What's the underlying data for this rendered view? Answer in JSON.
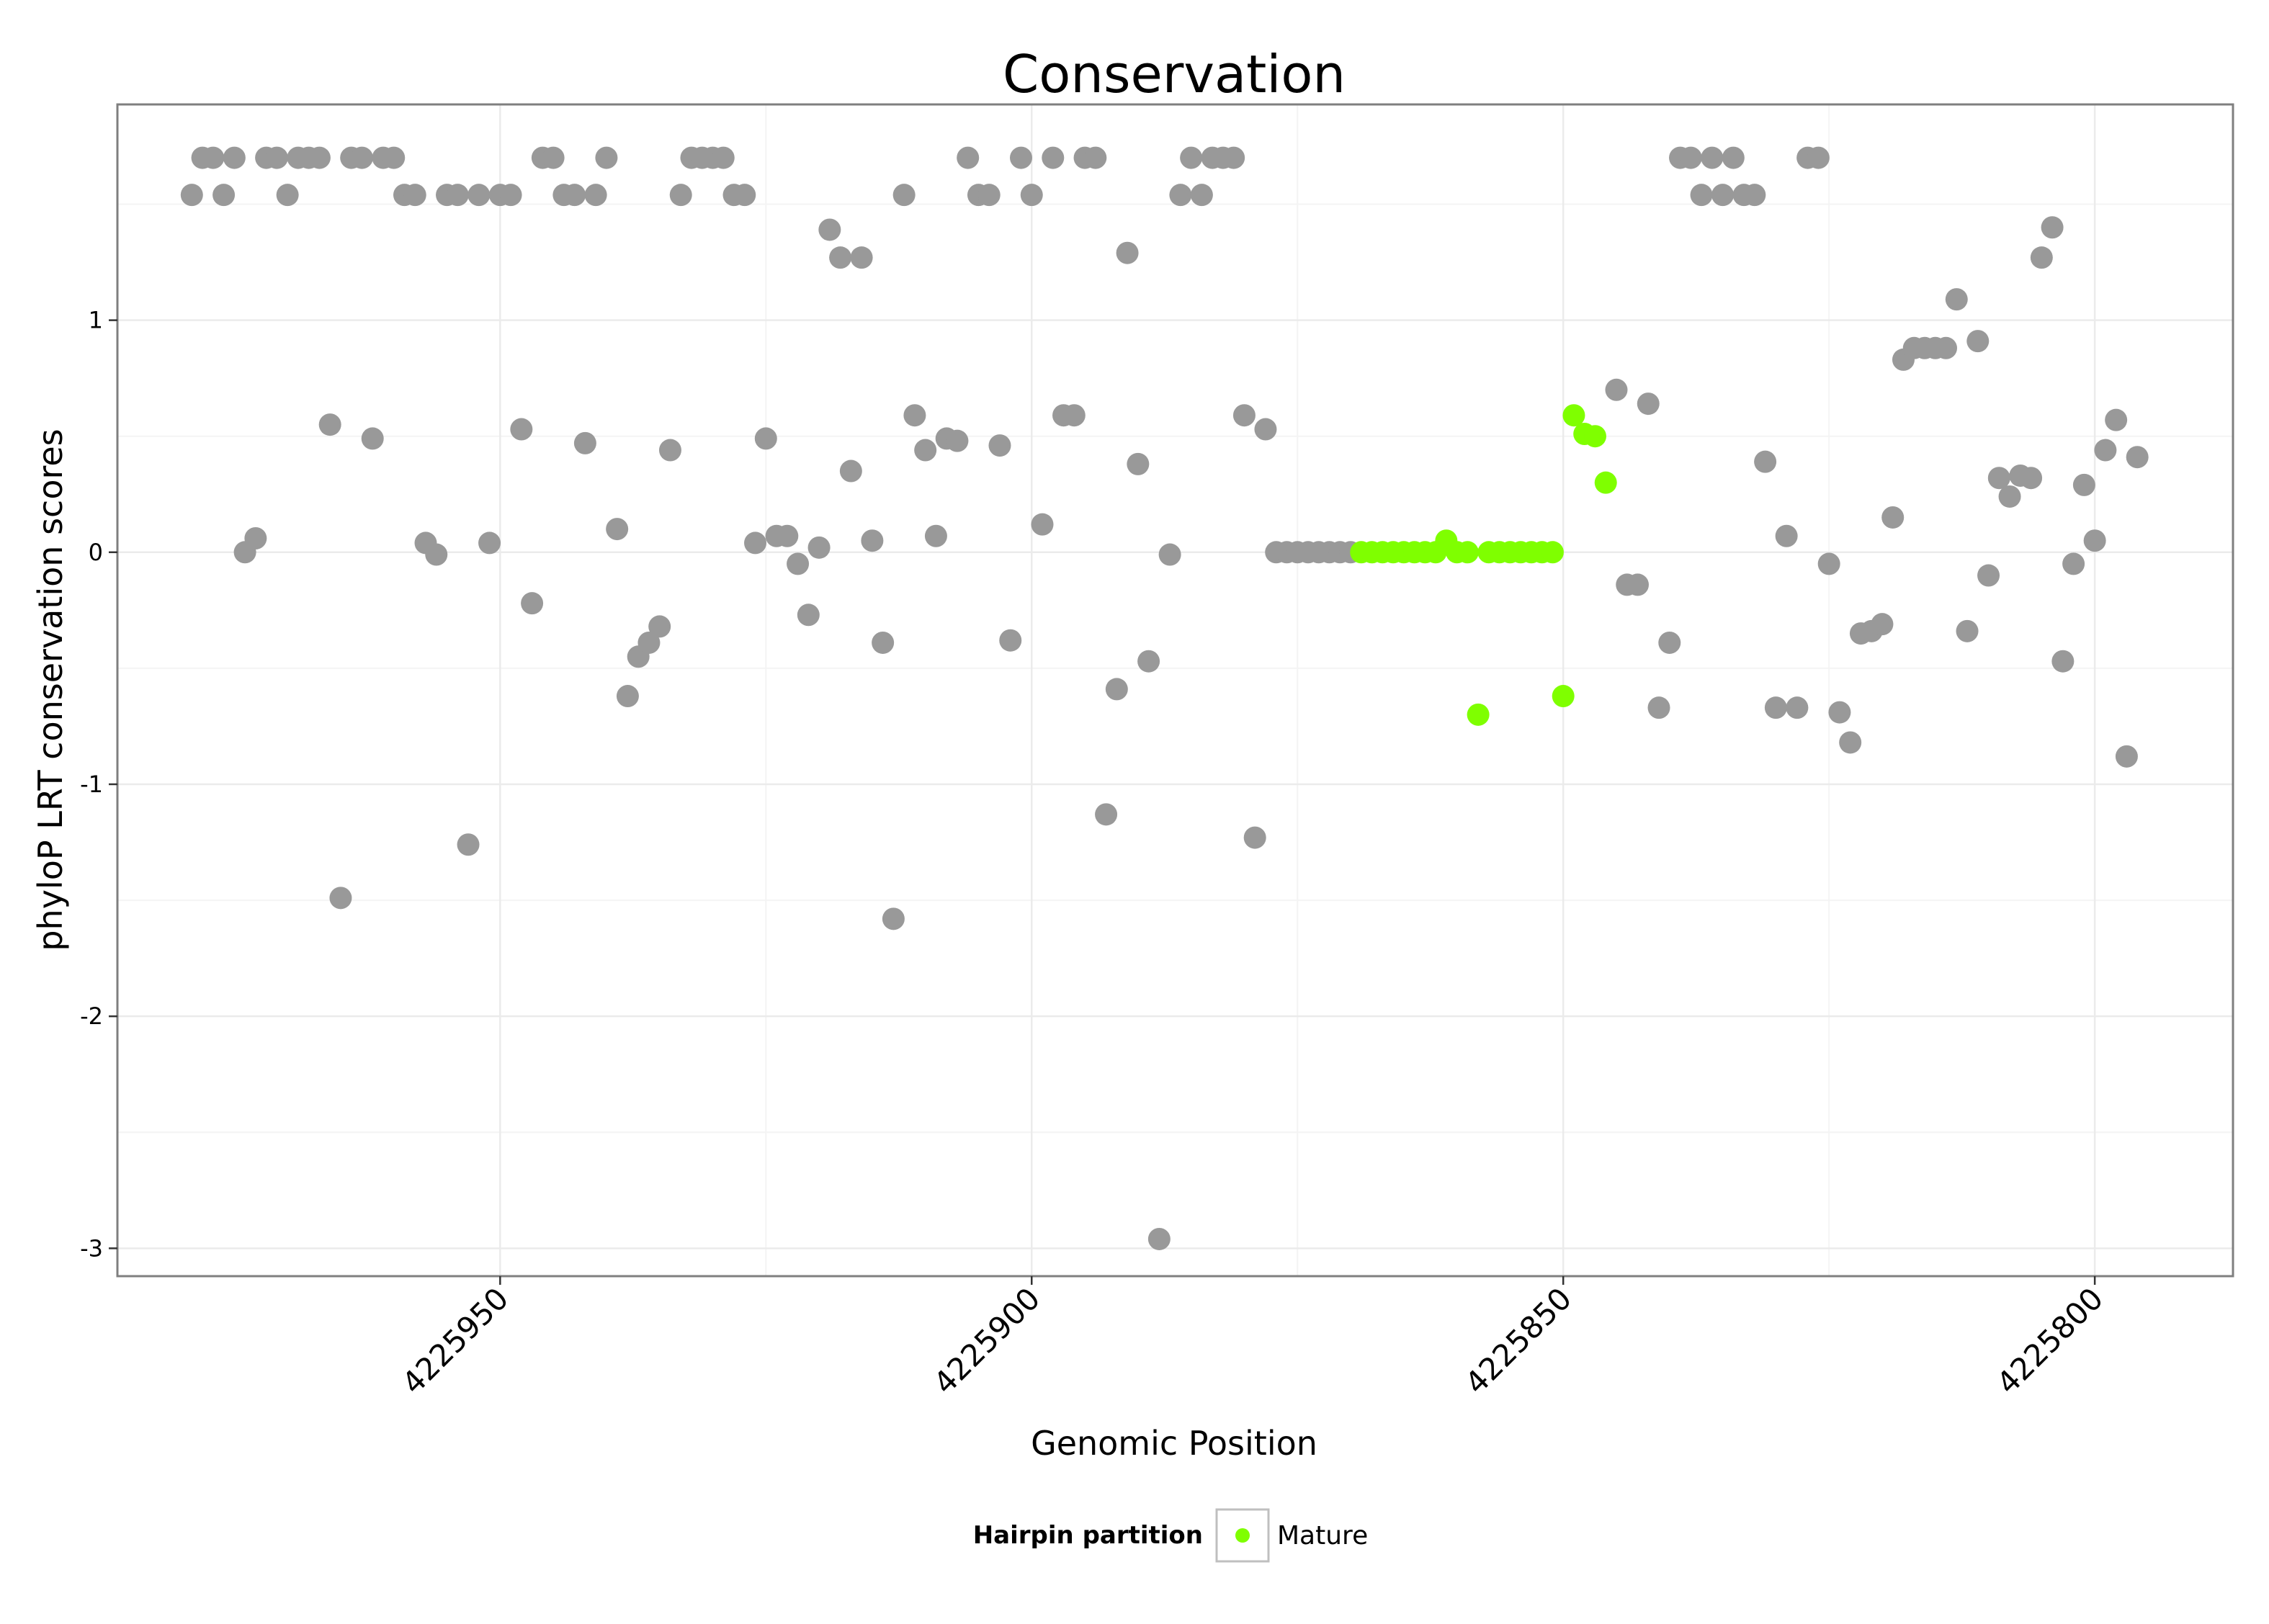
{
  "chart_data": {
    "type": "scatter",
    "title": "Conservation",
    "xlabel": "Genomic Position",
    "ylabel": "phyloP LRT conservation scores",
    "x_reversed": true,
    "xlim": [
      4225986,
      4225787
    ],
    "ylim": [
      -3.12,
      1.93
    ],
    "x_ticks": [
      4225950,
      4225900,
      4225850,
      4225800
    ],
    "x_tick_labels": [
      "4225950",
      "4225900",
      "4225850",
      "4225800"
    ],
    "y_ticks": [
      1,
      0,
      -1,
      -2,
      -3
    ],
    "y_tick_labels": [
      "1",
      "0",
      "-1",
      "-2",
      "-3"
    ],
    "grid": true,
    "legend": {
      "position": "bottom",
      "title": "Hairpin partition",
      "entries": [
        {
          "label": "Mature",
          "color": "#7FFF00"
        }
      ]
    },
    "series": [
      {
        "color": "#999999",
        "points": [
          [
            4225979,
            1.54
          ],
          [
            4225978,
            1.7
          ],
          [
            4225977,
            1.7
          ],
          [
            4225976,
            1.54
          ],
          [
            4225975,
            1.7
          ],
          [
            4225974,
            0.0
          ],
          [
            4225973,
            0.06
          ],
          [
            4225972,
            1.7
          ],
          [
            4225971,
            1.7
          ],
          [
            4225970,
            1.54
          ],
          [
            4225969,
            1.7
          ],
          [
            4225968,
            1.7
          ],
          [
            4225967,
            1.7
          ],
          [
            4225966,
            0.55
          ],
          [
            4225965,
            -1.49
          ],
          [
            4225964,
            1.7
          ],
          [
            4225963,
            1.7
          ],
          [
            4225962,
            0.49
          ],
          [
            4225961,
            1.7
          ],
          [
            4225960,
            1.7
          ],
          [
            4225959,
            1.54
          ],
          [
            4225958,
            1.54
          ],
          [
            4225957,
            0.04
          ],
          [
            4225956,
            -0.01
          ],
          [
            4225955,
            1.54
          ],
          [
            4225954,
            1.54
          ],
          [
            4225953,
            -1.26
          ],
          [
            4225952,
            1.54
          ],
          [
            4225951,
            0.04
          ],
          [
            4225950,
            1.54
          ],
          [
            4225949,
            1.54
          ],
          [
            4225948,
            0.53
          ],
          [
            4225947,
            -0.22
          ],
          [
            4225946,
            1.7
          ],
          [
            4225945,
            1.7
          ],
          [
            4225944,
            1.54
          ],
          [
            4225943,
            1.54
          ],
          [
            4225942,
            0.47
          ],
          [
            4225941,
            1.54
          ],
          [
            4225940,
            1.7
          ],
          [
            4225939,
            0.1
          ],
          [
            4225938,
            -0.62
          ],
          [
            4225937,
            -0.45
          ],
          [
            4225936,
            -0.39
          ],
          [
            4225935,
            -0.32
          ],
          [
            4225934,
            0.44
          ],
          [
            4225933,
            1.54
          ],
          [
            4225932,
            1.7
          ],
          [
            4225931,
            1.7
          ],
          [
            4225930,
            1.7
          ],
          [
            4225929,
            1.7
          ],
          [
            4225928,
            1.54
          ],
          [
            4225927,
            1.54
          ],
          [
            4225926,
            0.04
          ],
          [
            4225925,
            0.49
          ],
          [
            4225924,
            0.07
          ],
          [
            4225923,
            0.07
          ],
          [
            4225922,
            -0.05
          ],
          [
            4225921,
            -0.27
          ],
          [
            4225920,
            0.02
          ],
          [
            4225919,
            1.39
          ],
          [
            4225918,
            1.27
          ],
          [
            4225917,
            0.35
          ],
          [
            4225916,
            1.27
          ],
          [
            4225915,
            0.05
          ],
          [
            4225914,
            -0.39
          ],
          [
            4225913,
            -1.58
          ],
          [
            4225912,
            1.54
          ],
          [
            4225911,
            0.59
          ],
          [
            4225910,
            0.44
          ],
          [
            4225909,
            0.07
          ],
          [
            4225908,
            0.49
          ],
          [
            4225907,
            0.48
          ],
          [
            4225906,
            1.7
          ],
          [
            4225905,
            1.54
          ],
          [
            4225904,
            1.54
          ],
          [
            4225903,
            0.46
          ],
          [
            4225902,
            -0.38
          ],
          [
            4225901,
            1.7
          ],
          [
            4225900,
            1.54
          ],
          [
            4225899,
            0.12
          ],
          [
            4225898,
            1.7
          ],
          [
            4225897,
            0.59
          ],
          [
            4225896,
            0.59
          ],
          [
            4225895,
            1.7
          ],
          [
            4225894,
            1.7
          ],
          [
            4225893,
            -1.13
          ],
          [
            4225892,
            -0.59
          ],
          [
            4225891,
            1.29
          ],
          [
            4225890,
            0.38
          ],
          [
            4225889,
            -0.47
          ],
          [
            4225888,
            -2.96
          ],
          [
            4225887,
            -0.01
          ],
          [
            4225886,
            1.54
          ],
          [
            4225885,
            1.7
          ],
          [
            4225884,
            1.54
          ],
          [
            4225883,
            1.7
          ],
          [
            4225882,
            1.7
          ],
          [
            4225881,
            1.7
          ],
          [
            4225880,
            0.59
          ],
          [
            4225879,
            -1.23
          ],
          [
            4225878,
            0.53
          ],
          [
            4225877,
            0.0
          ],
          [
            4225876,
            0.0
          ],
          [
            4225875,
            0.0
          ],
          [
            4225874,
            0.0
          ],
          [
            4225873,
            0.0
          ],
          [
            4225872,
            0.0
          ],
          [
            4225871,
            0.0
          ],
          [
            4225870,
            0.0
          ],
          [
            4225845,
            0.7
          ],
          [
            4225844,
            -0.14
          ],
          [
            4225843,
            -0.14
          ],
          [
            4225842,
            0.64
          ],
          [
            4225841,
            -0.67
          ],
          [
            4225840,
            -0.39
          ],
          [
            4225839,
            1.7
          ],
          [
            4225838,
            1.7
          ],
          [
            4225837,
            1.54
          ],
          [
            4225836,
            1.7
          ],
          [
            4225835,
            1.54
          ],
          [
            4225834,
            1.7
          ],
          [
            4225833,
            1.54
          ],
          [
            4225832,
            1.54
          ],
          [
            4225831,
            0.39
          ],
          [
            4225830,
            -0.67
          ],
          [
            4225829,
            0.07
          ],
          [
            4225828,
            -0.67
          ],
          [
            4225827,
            1.7
          ],
          [
            4225826,
            1.7
          ],
          [
            4225825,
            -0.05
          ],
          [
            4225824,
            -0.69
          ],
          [
            4225823,
            -0.82
          ],
          [
            4225822,
            -0.35
          ],
          [
            4225821,
            -0.34
          ],
          [
            4225820,
            -0.31
          ],
          [
            4225819,
            0.15
          ],
          [
            4225818,
            0.83
          ],
          [
            4225817,
            0.88
          ],
          [
            4225816,
            0.88
          ],
          [
            4225815,
            0.88
          ],
          [
            4225814,
            0.88
          ],
          [
            4225813,
            1.09
          ],
          [
            4225812,
            -0.34
          ],
          [
            4225811,
            0.91
          ],
          [
            4225810,
            -0.1
          ],
          [
            4225809,
            0.32
          ],
          [
            4225808,
            0.24
          ],
          [
            4225807,
            0.33
          ],
          [
            4225806,
            0.32
          ],
          [
            4225805,
            1.27
          ],
          [
            4225804,
            1.4
          ],
          [
            4225803,
            -0.47
          ],
          [
            4225802,
            -0.05
          ],
          [
            4225801,
            0.29
          ],
          [
            4225800,
            0.05
          ],
          [
            4225799,
            0.44
          ],
          [
            4225798,
            0.57
          ],
          [
            4225797,
            -0.88
          ],
          [
            4225796,
            0.41
          ]
        ]
      },
      {
        "name": "Mature",
        "color": "#7FFF00",
        "points": [
          [
            4225869,
            0.0
          ],
          [
            4225868,
            0.0
          ],
          [
            4225867,
            0.0
          ],
          [
            4225866,
            0.0
          ],
          [
            4225865,
            0.0
          ],
          [
            4225864,
            0.0
          ],
          [
            4225863,
            0.0
          ],
          [
            4225862,
            0.0
          ],
          [
            4225861,
            0.05
          ],
          [
            4225860,
            0.0
          ],
          [
            4225859,
            0.0
          ],
          [
            4225858,
            -0.7
          ],
          [
            4225857,
            0.0
          ],
          [
            4225856,
            0.0
          ],
          [
            4225855,
            0.0
          ],
          [
            4225854,
            0.0
          ],
          [
            4225853,
            0.0
          ],
          [
            4225852,
            0.0
          ],
          [
            4225851,
            0.0
          ],
          [
            4225850,
            -0.62
          ],
          [
            4225849,
            0.59
          ],
          [
            4225848,
            0.51
          ],
          [
            4225847,
            0.5
          ],
          [
            4225846,
            0.3
          ]
        ]
      }
    ]
  }
}
